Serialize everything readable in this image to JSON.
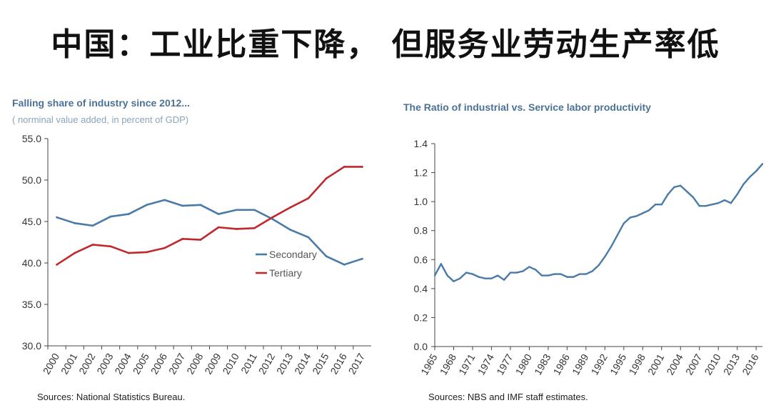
{
  "slide": {
    "title": "中国：工业比重下降， 但服务业劳动生产率低"
  },
  "chart_data": [
    {
      "type": "line",
      "title": "Falling share of industry since 2012...",
      "subtitle": "( norminal value added, in percent of GDP)",
      "source": "Sources: National Statistics Bureau.",
      "x": [
        "2000",
        "2001",
        "2002",
        "2003",
        "2004",
        "2005",
        "2006",
        "2007",
        "2008",
        "2009",
        "2010",
        "2011",
        "2012",
        "2013",
        "2014",
        "2015",
        "2016",
        "2017"
      ],
      "ytick_labels": [
        "30.0",
        "35.0",
        "40.0",
        "45.0",
        "50.0",
        "55.0"
      ],
      "ylim": [
        30,
        55
      ],
      "series": [
        {
          "name": "Secondary",
          "color": "#4a7aa7",
          "values": [
            45.5,
            44.8,
            44.5,
            45.6,
            45.9,
            47.0,
            47.6,
            46.9,
            47.0,
            45.9,
            46.4,
            46.4,
            45.3,
            44.0,
            43.1,
            40.8,
            39.8,
            40.5
          ]
        },
        {
          "name": "Tertiary",
          "color": "#c1282d",
          "values": [
            39.8,
            41.2,
            42.2,
            42.0,
            41.2,
            41.3,
            41.8,
            42.9,
            42.8,
            44.3,
            44.1,
            44.2,
            45.5,
            46.7,
            47.8,
            50.2,
            51.6,
            51.6
          ]
        }
      ],
      "legend": "center-right",
      "grid": false
    },
    {
      "type": "line",
      "title": "The Ratio of industrial vs. Service labor productivity",
      "source": "Sources: NBS and IMF staff estimates.",
      "xtick_labels": [
        "1965",
        "1968",
        "1971",
        "1974",
        "1977",
        "1980",
        "1983",
        "1986",
        "1989",
        "1992",
        "1995",
        "1998",
        "2001",
        "2004",
        "2007",
        "2010",
        "2013",
        "2016"
      ],
      "xlim": [
        1965,
        2017
      ],
      "ytick_labels": [
        "0.0",
        "0.2",
        "0.4",
        "0.6",
        "0.8",
        "1.0",
        "1.2",
        "1.4"
      ],
      "ylim": [
        0,
        1.4
      ],
      "series": [
        {
          "color": "#4a7aa7",
          "x": [
            1965,
            1966,
            1967,
            1968,
            1969,
            1970,
            1971,
            1972,
            1973,
            1974,
            1975,
            1976,
            1977,
            1978,
            1979,
            1980,
            1981,
            1982,
            1983,
            1984,
            1985,
            1986,
            1987,
            1988,
            1989,
            1990,
            1991,
            1992,
            1993,
            1994,
            1995,
            1996,
            1997,
            1998,
            1999,
            2000,
            2001,
            2002,
            2003,
            2004,
            2005,
            2006,
            2007,
            2008,
            2009,
            2010,
            2011,
            2012,
            2013,
            2014,
            2015,
            2016,
            2017
          ],
          "y": [
            0.49,
            0.57,
            0.49,
            0.45,
            0.47,
            0.51,
            0.5,
            0.48,
            0.47,
            0.47,
            0.49,
            0.46,
            0.51,
            0.51,
            0.52,
            0.55,
            0.53,
            0.49,
            0.49,
            0.5,
            0.5,
            0.48,
            0.48,
            0.5,
            0.5,
            0.52,
            0.56,
            0.62,
            0.69,
            0.77,
            0.85,
            0.89,
            0.9,
            0.92,
            0.94,
            0.98,
            0.98,
            1.05,
            1.1,
            1.11,
            1.07,
            1.03,
            0.97,
            0.97,
            0.98,
            0.99,
            1.01,
            0.99,
            1.05,
            1.12,
            1.17,
            1.21,
            1.26
          ]
        }
      ],
      "grid": false
    }
  ]
}
